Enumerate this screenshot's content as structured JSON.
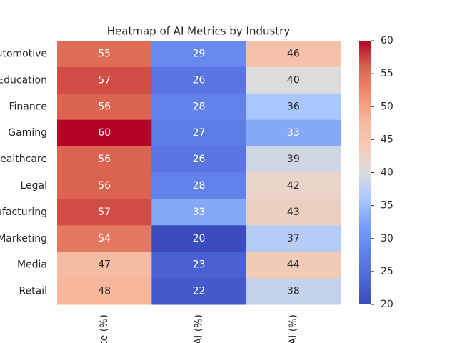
{
  "chart_data": {
    "type": "heatmap",
    "title": "Heatmap of AI Metrics by Industry",
    "columns": [
      "te (%)",
      "AI (%)",
      "AI (%)"
    ],
    "rows": [
      "Automotive",
      "Education",
      "Finance",
      "Gaming",
      "Healthcare",
      "Legal",
      "Manufacturing",
      "Marketing",
      "Media",
      "Retail"
    ],
    "values": [
      [
        55,
        29,
        46
      ],
      [
        57,
        26,
        40
      ],
      [
        56,
        28,
        36
      ],
      [
        60,
        27,
        33
      ],
      [
        56,
        26,
        39
      ],
      [
        56,
        28,
        42
      ],
      [
        57,
        33,
        43
      ],
      [
        54,
        20,
        37
      ],
      [
        47,
        23,
        44
      ],
      [
        48,
        22,
        38
      ]
    ],
    "colormap": "coolwarm",
    "clim": [
      20,
      60
    ],
    "cbar_ticks": [
      20,
      25,
      30,
      35,
      40,
      45,
      50,
      55,
      60
    ]
  }
}
